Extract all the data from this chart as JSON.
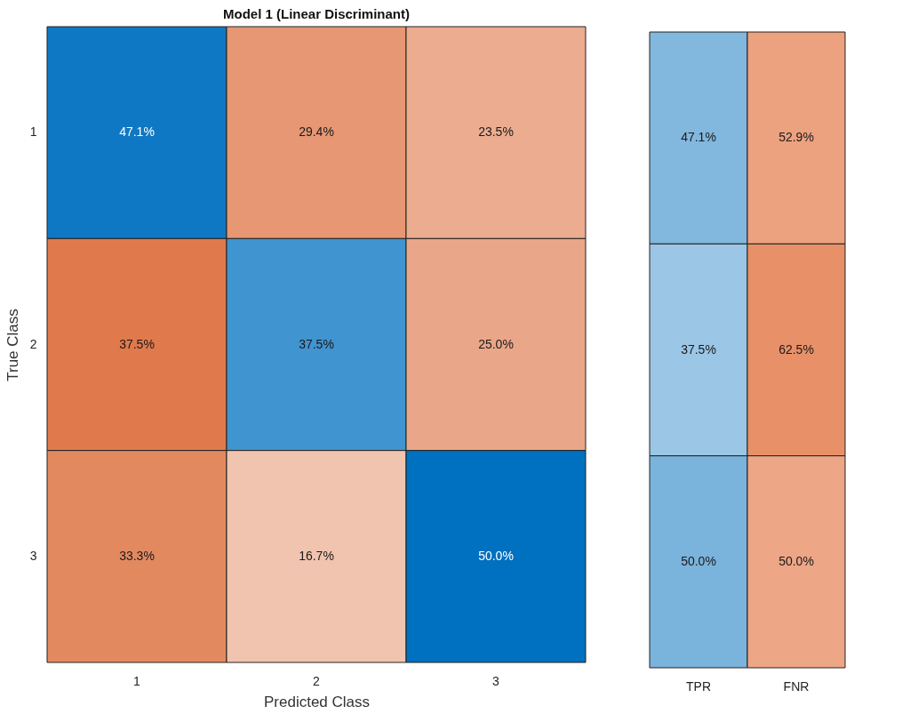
{
  "chart_data": [
    {
      "type": "heatmap",
      "title": "Model 1 (Linear Discriminant)",
      "xlabel": "Predicted Class",
      "ylabel": "True Class",
      "categories": [
        "1",
        "2",
        "3"
      ],
      "y_categories": [
        "1",
        "2",
        "3"
      ],
      "cells": [
        [
          47.1,
          29.4,
          23.5
        ],
        [
          37.5,
          37.5,
          25.0
        ],
        [
          33.3,
          16.7,
          50.0
        ]
      ],
      "cell_labels": [
        [
          "47.1%",
          "29.4%",
          "23.5%"
        ],
        [
          "37.5%",
          "37.5%",
          "25.0%"
        ],
        [
          "33.3%",
          "16.7%",
          "50.0%"
        ]
      ],
      "colors": [
        [
          "#0070c0",
          "#e07a4c",
          "#e07a4c"
        ],
        [
          "#e07a4c",
          "#0070c0",
          "#e07a4c"
        ],
        [
          "#e07a4c",
          "#e07a4c",
          "#0070c0"
        ]
      ]
    },
    {
      "type": "heatmap",
      "categories": [
        "TPR",
        "FNR"
      ],
      "y_categories": [
        "1",
        "2",
        "3"
      ],
      "tick_labels": "x",
      "cells": [
        [
          47.1,
          52.9
        ],
        [
          37.5,
          62.5
        ],
        [
          50.0,
          50.0
        ]
      ],
      "cell_labels": [
        [
          "47.1%",
          "52.9%"
        ],
        [
          "37.5%",
          "62.5%"
        ],
        [
          "50.0%",
          "50.0%"
        ]
      ],
      "colors": [
        [
          "#7ab3dc",
          "#e89068"
        ],
        [
          "#7ab3dc",
          "#e89068"
        ],
        [
          "#7ab3dc",
          "#e89068"
        ]
      ]
    }
  ]
}
